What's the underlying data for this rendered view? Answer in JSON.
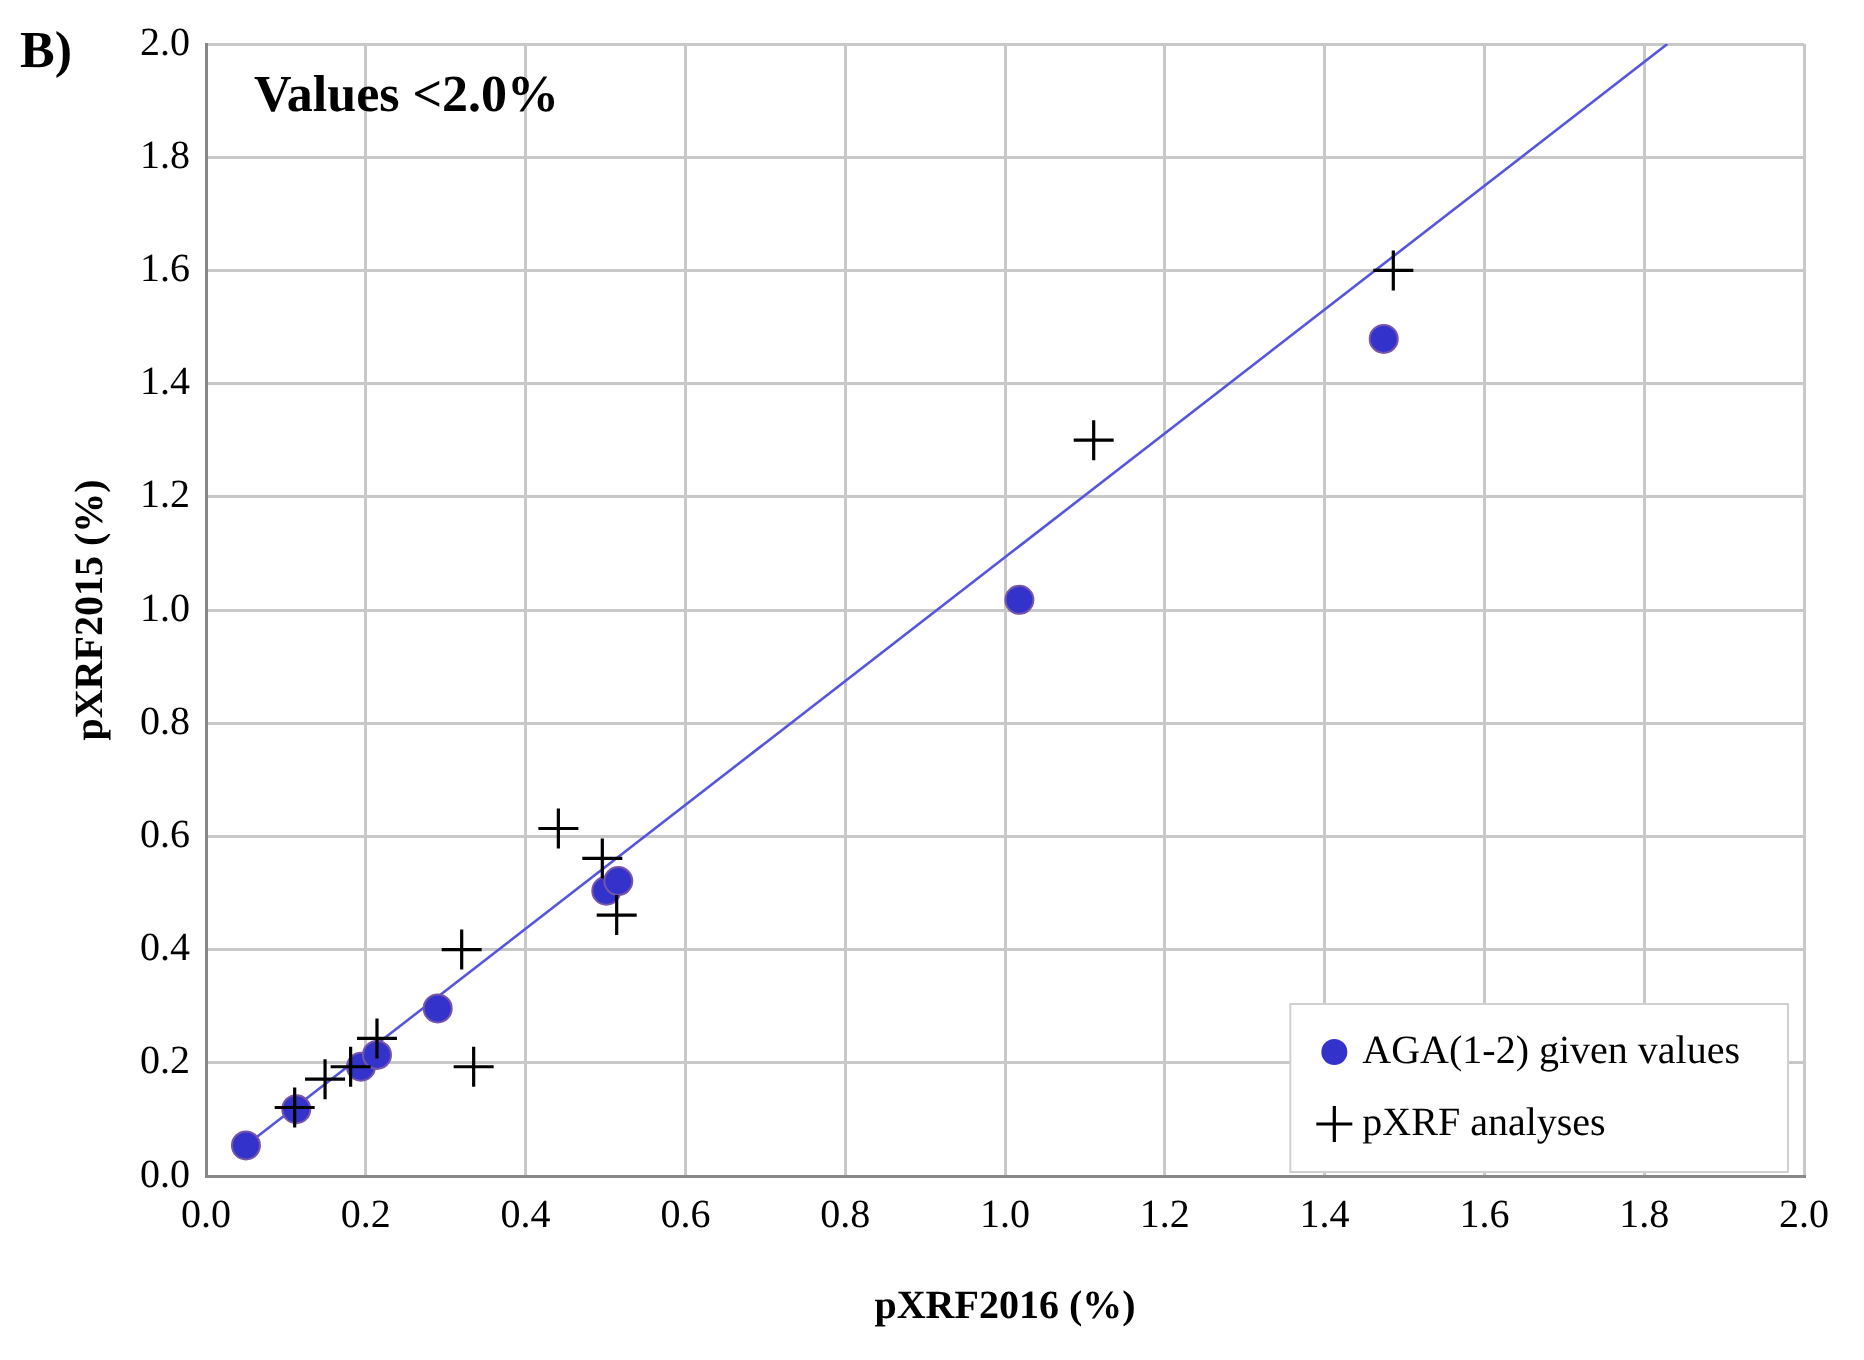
{
  "chart_data": {
    "type": "scatter",
    "xlabel": "pXRF2016 (%)",
    "ylabel": "pXRF2015 (%)",
    "annotations": [
      "B)",
      "Values <2.0%"
    ],
    "xlim": [
      0,
      2
    ],
    "xticks": [
      {
        "value": 0,
        "label": "0.0"
      },
      0.2,
      0.4,
      0.6,
      0.8,
      {
        "value": 1,
        "label": "1.0"
      },
      1.2,
      1.4,
      1.6,
      1.8,
      {
        "value": 2,
        "label": "2.0"
      }
    ],
    "ylim": [
      0,
      2
    ],
    "yticks": [
      {
        "value": 0,
        "label": "0.0"
      },
      0.2,
      0.4,
      0.6,
      0.8,
      {
        "value": 1,
        "label": "1.0"
      },
      1.2,
      1.4,
      1.6,
      1.8,
      {
        "value": 2,
        "label": "2.0"
      }
    ],
    "grid": true,
    "legend": "bottom right",
    "series": [
      {
        "name": "AGA(1-2) given values",
        "color": "#3333cc",
        "marker": "circle",
        "x": [
          0.05,
          0.113,
          0.194,
          0.214,
          0.29,
          0.501,
          0.516,
          1.018,
          1.474
        ],
        "values": [
          0.054,
          0.118,
          0.193,
          0.214,
          0.296,
          0.504,
          0.521,
          1.018,
          1.479
        ]
      },
      {
        "name": "pXRF analyses",
        "color": "#000000",
        "marker": "cross",
        "x": [
          0.111,
          0.149,
          0.181,
          0.214,
          0.32,
          0.335,
          0.441,
          0.496,
          0.514,
          1.111,
          1.486
        ],
        "values": [
          0.121,
          0.171,
          0.193,
          0.243,
          0.4,
          0.193,
          0.614,
          0.561,
          0.461,
          1.3,
          1.6
        ]
      },
      {
        "type": "line",
        "color": "#5555dd",
        "marker": "none",
        "x": [
          0.05,
          1.829
        ],
        "values": [
          0.054,
          2.0
        ]
      }
    ]
  }
}
